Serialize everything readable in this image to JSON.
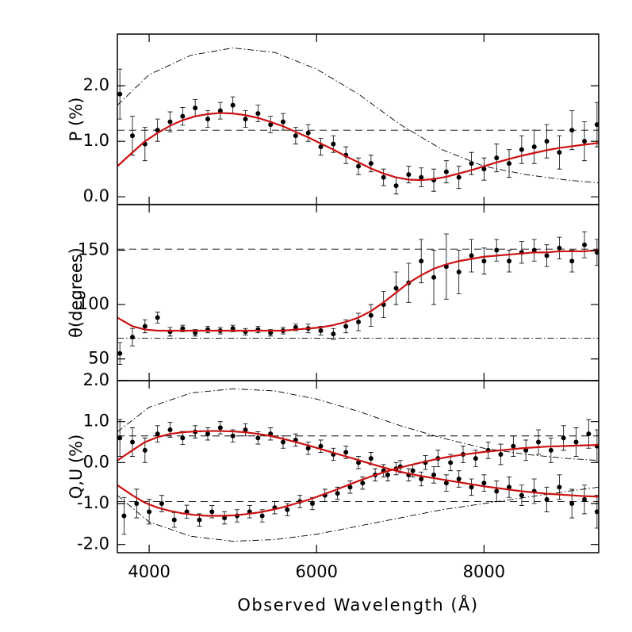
{
  "chart_data": [
    {
      "type": "scatter",
      "y_label": "P (%)",
      "xlim": [
        3620,
        9370
      ],
      "xticks": [
        4000,
        6000,
        8000
      ],
      "ylim": [
        -0.14,
        2.93
      ],
      "yticks": [
        {
          "value": 0,
          "label": "0.0"
        },
        {
          "value": 1,
          "label": "1.0"
        },
        {
          "value": 2,
          "label": "2.0"
        }
      ],
      "series": [
        {
          "style": "dashdot",
          "color": "#000000",
          "x": [
            3620,
            4000,
            4500,
            5000,
            5500,
            6000,
            6500,
            7000,
            7500,
            8000,
            8500,
            9000,
            9370
          ],
          "values": [
            1.65,
            2.2,
            2.55,
            2.68,
            2.6,
            2.3,
            1.85,
            1.3,
            0.85,
            0.55,
            0.4,
            0.3,
            0.25
          ]
        },
        {
          "style": "dashed",
          "color": "#000000",
          "x": [
            3620,
            9370
          ],
          "values": [
            1.2,
            1.2
          ]
        },
        {
          "style": "points",
          "color": "#000000",
          "x": [
            3650,
            3800,
            3950,
            4100,
            4250,
            4400,
            4550,
            4700,
            4850,
            5000,
            5150,
            5300,
            5450,
            5600,
            5750,
            5900,
            6050,
            6200,
            6350,
            6500,
            6650,
            6800,
            6950,
            7100,
            7250,
            7400,
            7550,
            7700,
            7850,
            8000,
            8150,
            8300,
            8450,
            8600,
            8750,
            8900,
            9050,
            9200,
            9350
          ],
          "values": [
            1.85,
            1.1,
            0.95,
            1.2,
            1.35,
            1.45,
            1.6,
            1.4,
            1.55,
            1.65,
            1.4,
            1.5,
            1.3,
            1.35,
            1.1,
            1.15,
            0.9,
            0.95,
            0.75,
            0.55,
            0.6,
            0.35,
            0.2,
            0.4,
            0.35,
            0.3,
            0.45,
            0.35,
            0.6,
            0.5,
            0.7,
            0.6,
            0.85,
            0.9,
            1.0,
            0.8,
            1.2,
            1.0,
            1.3
          ],
          "errors": [
            0.45,
            0.35,
            0.3,
            0.2,
            0.18,
            0.16,
            0.15,
            0.15,
            0.15,
            0.15,
            0.15,
            0.15,
            0.15,
            0.15,
            0.15,
            0.15,
            0.15,
            0.15,
            0.15,
            0.15,
            0.15,
            0.15,
            0.15,
            0.15,
            0.17,
            0.2,
            0.2,
            0.2,
            0.2,
            0.2,
            0.25,
            0.25,
            0.25,
            0.3,
            0.3,
            0.3,
            0.35,
            0.35,
            0.4
          ]
        },
        {
          "style": "line",
          "color": "#cc1111",
          "x": [
            3620,
            3800,
            3950,
            4100,
            4250,
            4400,
            4550,
            4700,
            4850,
            5000,
            5150,
            5300,
            5450,
            5600,
            5750,
            5900,
            6050,
            6200,
            6350,
            6500,
            6650,
            6800,
            6950,
            7100,
            7250,
            7400,
            7550,
            7700,
            7850,
            8000,
            8150,
            8300,
            8450,
            8600,
            8750,
            8900,
            9050,
            9200,
            9370
          ],
          "values": [
            0.55,
            0.8,
            1.0,
            1.15,
            1.28,
            1.38,
            1.45,
            1.49,
            1.51,
            1.5,
            1.47,
            1.42,
            1.35,
            1.27,
            1.17,
            1.07,
            0.96,
            0.85,
            0.73,
            0.62,
            0.51,
            0.42,
            0.35,
            0.31,
            0.3,
            0.32,
            0.36,
            0.42,
            0.48,
            0.55,
            0.62,
            0.68,
            0.74,
            0.79,
            0.84,
            0.88,
            0.91,
            0.94,
            0.97
          ]
        }
      ]
    },
    {
      "type": "scatter",
      "y_label": "θ(degrees)",
      "xlim": [
        3620,
        9370
      ],
      "xticks": [
        4000,
        6000,
        8000
      ],
      "ylim": [
        30,
        192
      ],
      "yticks": [
        50,
        100,
        150
      ],
      "series": [
        {
          "style": "dashdot",
          "color": "#000000",
          "x": [
            3620,
            9370
          ],
          "values": [
            69,
            69
          ]
        },
        {
          "style": "dashed",
          "color": "#000000",
          "x": [
            3620,
            9370
          ],
          "values": [
            151,
            151
          ]
        },
        {
          "style": "points",
          "color": "#000000",
          "x": [
            3650,
            3800,
            3950,
            4100,
            4250,
            4400,
            4550,
            4700,
            4850,
            5000,
            5150,
            5300,
            5450,
            5600,
            5750,
            5900,
            6050,
            6200,
            6350,
            6500,
            6650,
            6800,
            6950,
            7100,
            7250,
            7400,
            7550,
            7700,
            7850,
            8000,
            8150,
            8300,
            8450,
            8600,
            8750,
            8900,
            9050,
            9200,
            9350
          ],
          "values": [
            55,
            70,
            80,
            88,
            75,
            78,
            74,
            77,
            76,
            78,
            75,
            77,
            74,
            76,
            79,
            78,
            76,
            73,
            80,
            84,
            90,
            100,
            115,
            120,
            140,
            125,
            135,
            130,
            145,
            140,
            150,
            140,
            148,
            150,
            145,
            152,
            140,
            155,
            148
          ],
          "errors": [
            10,
            8,
            6,
            5,
            4,
            3,
            3,
            3,
            3,
            3,
            3,
            3,
            3,
            3,
            3,
            4,
            4,
            5,
            6,
            8,
            10,
            12,
            15,
            18,
            20,
            25,
            30,
            20,
            15,
            12,
            10,
            10,
            10,
            10,
            10,
            10,
            10,
            12,
            12
          ]
        },
        {
          "style": "line",
          "color": "#cc1111",
          "x": [
            3620,
            3800,
            3950,
            4100,
            4250,
            4400,
            4550,
            4700,
            4850,
            5000,
            5150,
            5300,
            5450,
            5600,
            5750,
            5900,
            6050,
            6200,
            6350,
            6500,
            6650,
            6800,
            6950,
            7100,
            7250,
            7400,
            7550,
            7700,
            7850,
            8000,
            8150,
            8300,
            8450,
            8600,
            8750,
            8900,
            9050,
            9200,
            9370
          ],
          "values": [
            88,
            80,
            77,
            76,
            76,
            76,
            76,
            76,
            76,
            76,
            76,
            76,
            76,
            76,
            77,
            78,
            79,
            81,
            84,
            88,
            94,
            102,
            111,
            120,
            127,
            133,
            137,
            140,
            142,
            144,
            145,
            146,
            147,
            148,
            148,
            149,
            149,
            149,
            150
          ]
        }
      ]
    },
    {
      "type": "scatter",
      "y_label": "Q,U (%)",
      "x_label": "Observed Wavelength (Å)",
      "xlim": [
        3620,
        9370
      ],
      "xticks": [
        4000,
        6000,
        8000
      ],
      "ylim": [
        -2.2,
        2.0
      ],
      "yticks": [
        {
          "value": -2,
          "label": "-2.0"
        },
        {
          "value": -1,
          "label": "-1.0"
        },
        {
          "value": 0,
          "label": "0.0"
        },
        {
          "value": 1,
          "label": "1.0"
        },
        {
          "value": 2,
          "label": "2.0"
        }
      ],
      "series": [
        {
          "style": "dashdot",
          "color": "#000000",
          "x": [
            3620,
            4000,
            4500,
            5000,
            5500,
            6000,
            6500,
            7000,
            7500,
            8000,
            8500,
            9000,
            9370
          ],
          "values": [
            0.75,
            1.35,
            1.7,
            1.8,
            1.75,
            1.55,
            1.25,
            0.9,
            0.6,
            0.35,
            0.2,
            0.1,
            0.05
          ]
        },
        {
          "style": "dashdot",
          "color": "#000000",
          "x": [
            3620,
            4000,
            4500,
            5000,
            5500,
            6000,
            6500,
            7000,
            7500,
            8000,
            8500,
            9000,
            9370
          ],
          "values": [
            -0.8,
            -1.45,
            -1.8,
            -1.92,
            -1.88,
            -1.75,
            -1.55,
            -1.35,
            -1.15,
            -1.0,
            -0.85,
            -0.7,
            -0.6
          ]
        },
        {
          "style": "dashed",
          "color": "#000000",
          "x": [
            3620,
            9370
          ],
          "values": [
            0.65,
            0.65
          ]
        },
        {
          "style": "dashed",
          "color": "#000000",
          "x": [
            3620,
            9370
          ],
          "values": [
            -0.95,
            -0.95
          ]
        },
        {
          "style": "points",
          "color": "#000000",
          "x": [
            3650,
            3800,
            3950,
            4100,
            4250,
            4400,
            4550,
            4700,
            4850,
            5000,
            5150,
            5300,
            5450,
            5600,
            5750,
            5900,
            6050,
            6200,
            6350,
            6500,
            6650,
            6800,
            6950,
            7100,
            7250,
            7400,
            7550,
            7700,
            7850,
            8000,
            8150,
            8300,
            8450,
            8600,
            8750,
            8900,
            9050,
            9200,
            9350
          ],
          "values": [
            0.6,
            0.5,
            0.3,
            0.7,
            0.8,
            0.6,
            0.75,
            0.7,
            0.85,
            0.65,
            0.8,
            0.6,
            0.7,
            0.5,
            0.55,
            0.35,
            0.4,
            0.2,
            0.25,
            0.0,
            0.1,
            -0.2,
            -0.15,
            -0.3,
            -0.4,
            -0.3,
            -0.5,
            -0.4,
            -0.6,
            -0.5,
            -0.7,
            -0.6,
            -0.8,
            -0.7,
            -0.9,
            -0.6,
            -1.0,
            -0.9,
            -1.2
          ],
          "errors": [
            0.45,
            0.35,
            0.3,
            0.2,
            0.18,
            0.16,
            0.15,
            0.15,
            0.15,
            0.15,
            0.15,
            0.15,
            0.15,
            0.15,
            0.15,
            0.15,
            0.15,
            0.15,
            0.15,
            0.15,
            0.15,
            0.15,
            0.15,
            0.15,
            0.17,
            0.2,
            0.2,
            0.2,
            0.2,
            0.2,
            0.25,
            0.25,
            0.25,
            0.3,
            0.3,
            0.3,
            0.35,
            0.35,
            0.4
          ]
        },
        {
          "style": "points",
          "color": "#000000",
          "x": [
            3700,
            3850,
            4000,
            4150,
            4300,
            4450,
            4600,
            4750,
            4900,
            5050,
            5200,
            5350,
            5500,
            5650,
            5800,
            5950,
            6100,
            6250,
            6400,
            6550,
            6700,
            6850,
            7000,
            7150,
            7300,
            7450,
            7600,
            7750,
            7900,
            8050,
            8200,
            8350,
            8500,
            8650,
            8800,
            8950,
            9100,
            9250,
            9350
          ],
          "values": [
            -1.3,
            -1.0,
            -1.2,
            -1.0,
            -1.4,
            -1.2,
            -1.4,
            -1.2,
            -1.35,
            -1.3,
            -1.2,
            -1.3,
            -1.1,
            -1.15,
            -0.95,
            -1.0,
            -0.8,
            -0.75,
            -0.6,
            -0.5,
            -0.3,
            -0.3,
            -0.1,
            -0.2,
            0.0,
            0.1,
            0.0,
            0.2,
            0.1,
            0.3,
            0.2,
            0.4,
            0.3,
            0.5,
            0.3,
            0.6,
            0.5,
            0.7,
            0.4
          ],
          "errors": [
            0.45,
            0.35,
            0.3,
            0.2,
            0.18,
            0.16,
            0.15,
            0.15,
            0.15,
            0.15,
            0.15,
            0.15,
            0.15,
            0.15,
            0.15,
            0.15,
            0.15,
            0.15,
            0.15,
            0.15,
            0.15,
            0.15,
            0.15,
            0.15,
            0.17,
            0.2,
            0.2,
            0.2,
            0.2,
            0.2,
            0.25,
            0.25,
            0.25,
            0.3,
            0.3,
            0.3,
            0.35,
            0.35,
            0.4
          ]
        },
        {
          "style": "line",
          "color": "#cc1111",
          "x": [
            3620,
            3800,
            3950,
            4100,
            4250,
            4400,
            4550,
            4700,
            4850,
            5000,
            5150,
            5300,
            5450,
            5600,
            5750,
            5900,
            6050,
            6200,
            6350,
            6500,
            6650,
            6800,
            6950,
            7100,
            7250,
            7400,
            7550,
            7700,
            7850,
            8000,
            8150,
            8300,
            8450,
            8600,
            8750,
            8900,
            9050,
            9200,
            9370
          ],
          "values": [
            0.05,
            0.3,
            0.5,
            0.62,
            0.7,
            0.74,
            0.76,
            0.77,
            0.77,
            0.76,
            0.74,
            0.7,
            0.65,
            0.58,
            0.5,
            0.42,
            0.33,
            0.24,
            0.15,
            0.06,
            -0.03,
            -0.12,
            -0.2,
            -0.27,
            -0.33,
            -0.38,
            -0.43,
            -0.48,
            -0.53,
            -0.58,
            -0.62,
            -0.66,
            -0.7,
            -0.73,
            -0.76,
            -0.78,
            -0.8,
            -0.82,
            -0.83
          ]
        },
        {
          "style": "line",
          "color": "#cc1111",
          "x": [
            3620,
            3800,
            3950,
            4100,
            4250,
            4400,
            4550,
            4700,
            4850,
            5000,
            5150,
            5300,
            5450,
            5600,
            5750,
            5900,
            6050,
            6200,
            6350,
            6500,
            6650,
            6800,
            6950,
            7100,
            7250,
            7400,
            7550,
            7700,
            7850,
            8000,
            8150,
            8300,
            8450,
            8600,
            8750,
            8900,
            9050,
            9200,
            9370
          ],
          "values": [
            -0.55,
            -0.8,
            -0.98,
            -1.1,
            -1.18,
            -1.24,
            -1.28,
            -1.3,
            -1.3,
            -1.29,
            -1.26,
            -1.22,
            -1.16,
            -1.09,
            -1.0,
            -0.91,
            -0.8,
            -0.69,
            -0.57,
            -0.45,
            -0.34,
            -0.24,
            -0.15,
            -0.07,
            0.0,
            0.07,
            0.13,
            0.18,
            0.22,
            0.26,
            0.29,
            0.32,
            0.35,
            0.37,
            0.39,
            0.4,
            0.41,
            0.42,
            0.43
          ]
        }
      ]
    }
  ]
}
